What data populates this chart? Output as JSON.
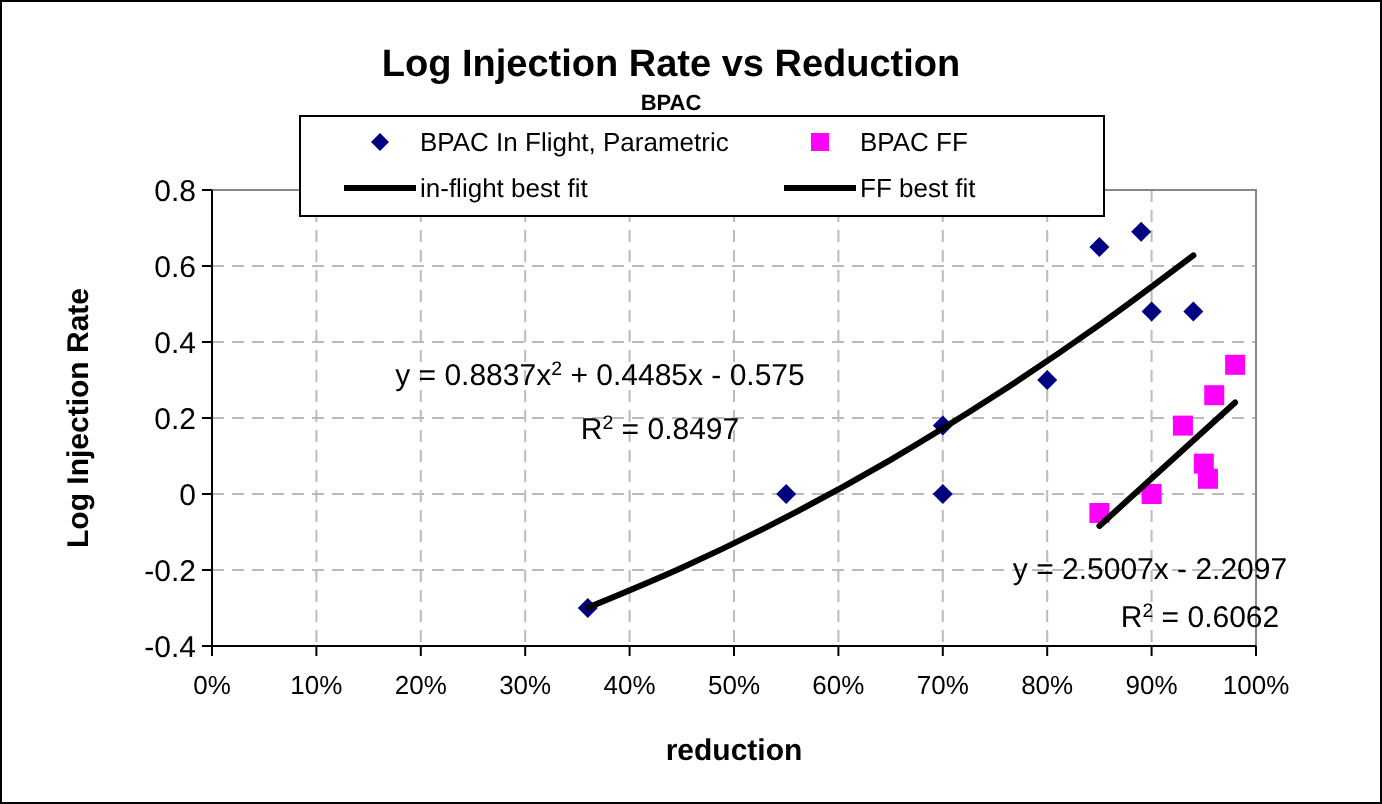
{
  "chart_data": {
    "type": "scatter",
    "title": "Log Injection Rate vs Reduction",
    "subtitle": "BPAC",
    "xlabel": "reduction",
    "ylabel": "Log Injection Rate",
    "xlim": [
      0,
      1
    ],
    "xticks": [
      {
        "value": 0,
        "label": "0%"
      },
      {
        "value": 0.1,
        "label": "10%"
      },
      {
        "value": 0.2,
        "label": "20%"
      },
      {
        "value": 0.3,
        "label": "30%"
      },
      {
        "value": 0.4,
        "label": "40%"
      },
      {
        "value": 0.5,
        "label": "50%"
      },
      {
        "value": 0.6,
        "label": "60%"
      },
      {
        "value": 0.7,
        "label": "70%"
      },
      {
        "value": 0.8,
        "label": "80%"
      },
      {
        "value": 0.9,
        "label": "90%"
      },
      {
        "value": 1,
        "label": "100%"
      }
    ],
    "ylim": [
      -0.4,
      0.8
    ],
    "yticks": [
      -0.4,
      -0.2,
      0,
      0.2,
      0.4,
      0.6,
      0.8
    ],
    "grid": true,
    "legend": "top",
    "series": [
      {
        "name": "BPAC In Flight, Parametric",
        "marker": "diamond",
        "color": "#000080",
        "x": [
          0.36,
          0.55,
          0.7,
          0.7,
          0.8,
          0.85,
          0.89,
          0.9,
          0.94
        ],
        "values": [
          -0.3,
          0,
          0.18,
          0,
          0.3,
          0.65,
          0.69,
          0.48,
          0.48
        ]
      },
      {
        "name": "BPAC FF",
        "marker": "square",
        "color": "#ff00ff",
        "x": [
          0.85,
          0.9,
          0.93,
          0.95,
          0.954,
          0.96,
          0.98
        ],
        "values": [
          -0.05,
          0,
          0.18,
          0.08,
          0.04,
          0.26,
          0.34
        ]
      },
      {
        "name": "in-flight best fit",
        "type": "line",
        "marker": "none",
        "color": "#000000",
        "x": [
          0.36,
          0.45,
          0.55,
          0.65,
          0.75,
          0.85,
          0.94
        ],
        "values": [
          -0.299,
          -0.194,
          -0.061,
          0.09,
          0.259,
          0.445,
          0.628
        ]
      },
      {
        "name": "FF best fit",
        "type": "line",
        "marker": "none",
        "color": "#000000",
        "x": [
          0.85,
          0.98
        ],
        "values": [
          -0.084,
          0.241
        ]
      }
    ],
    "annotations": [
      "y = 0.8837x$^{2}$ + 0.4485x - 0.575",
      "R$^{2}$ = 0.8497",
      "y = 2.5007x - 2.2097",
      "R$^{2}$ = 0.6062"
    ]
  }
}
